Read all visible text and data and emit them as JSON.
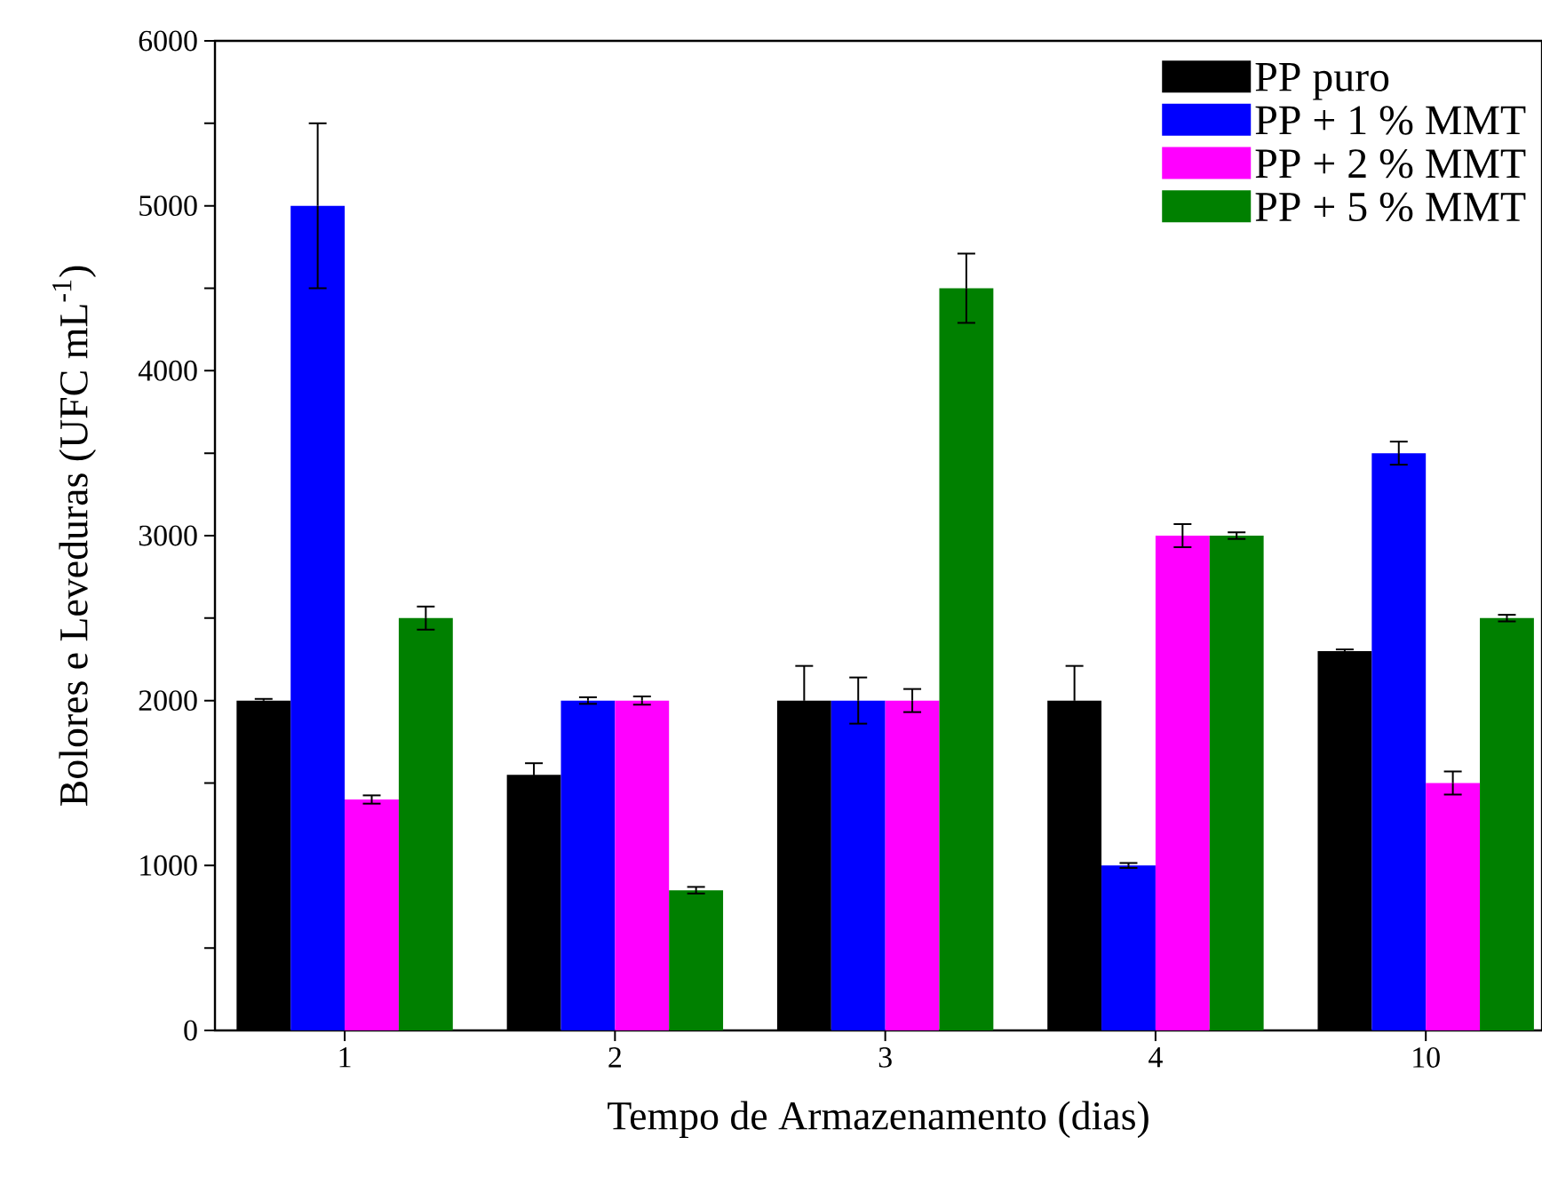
{
  "chart_data": {
    "type": "bar",
    "xlabel": "Tempo de Armazenamento (dias)",
    "ylabel": "Bolores e Leveduras (UFC mL$^{-1}$)",
    "categories": [
      "1",
      "2",
      "3",
      "4",
      "10"
    ],
    "series": [
      {
        "name": "PP puro",
        "color": "#000000",
        "values": [
          2000,
          1550,
          2000,
          2000,
          2300
        ],
        "errors": [
          10,
          70,
          210,
          210,
          10
        ]
      },
      {
        "name": "PP + 1 % MMT",
        "color": "#0000ff",
        "values": [
          5000,
          2000,
          2000,
          1000,
          3500
        ],
        "errors": [
          500,
          20,
          140,
          15,
          70
        ]
      },
      {
        "name": "PP + 2 % MMT",
        "color": "#ff00ff",
        "values": [
          1400,
          2000,
          2000,
          3000,
          1500
        ],
        "errors": [
          25,
          25,
          70,
          70,
          70
        ]
      },
      {
        "name": "PP + 5 % MMT",
        "color": "#008000",
        "values": [
          2500,
          850,
          4500,
          3000,
          2500
        ],
        "errors": [
          70,
          20,
          210,
          20,
          20
        ]
      }
    ],
    "ylim": [
      0,
      6000
    ],
    "yticks": [
      0,
      {
        "value": 500,
        "label": null
      },
      1000,
      {
        "value": 1500,
        "label": null
      },
      2000,
      {
        "value": 2500,
        "label": null
      },
      3000,
      {
        "value": 3500,
        "label": null
      },
      4000,
      {
        "value": 4500,
        "label": null
      },
      5000,
      {
        "value": 5500,
        "label": null
      },
      6000
    ],
    "legend": "top right",
    "grid": false
  }
}
